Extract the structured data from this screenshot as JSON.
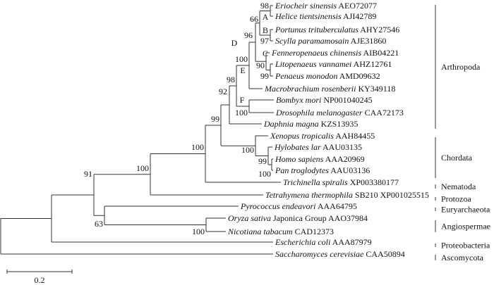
{
  "tips": [
    {
      "species": "Eriocheir sinensis",
      "accession": "AEO72077"
    },
    {
      "species": "Helice tientsinensis",
      "accession": "AJI42789"
    },
    {
      "species": "Portunus trituberculatus",
      "accession": "AHY27546"
    },
    {
      "species": "Scylla paramamosain",
      "accession": "AJE31860"
    },
    {
      "species": "Fenneropenaeus chinensis",
      "accession": "AIB04221"
    },
    {
      "species": "Litopenaeus vannamei",
      "accession": "AHZ12761"
    },
    {
      "species": "Penaeus monodon",
      "accession": "AMD09632"
    },
    {
      "species": "Macrobrachium rosenberii",
      "accession": "KY349118"
    },
    {
      "species": "Bombyx mori",
      "accession": "NP001040245"
    },
    {
      "species": "Drosophila melanogaster",
      "accession": "CAA72173"
    },
    {
      "species": "Daphnia magna",
      "accession": "KZS13935"
    },
    {
      "species": "Xenopus tropicalis",
      "accession": "AAH84455"
    },
    {
      "species": "Hylobates lar",
      "accession": "AAU03135"
    },
    {
      "species": "Homo sapiens",
      "accession": "AAA20969"
    },
    {
      "species": "Pan troglodytes",
      "accession": "AAU03136"
    },
    {
      "species": "Trichinella spiralis",
      "accession": "XP003380177"
    },
    {
      "species": "Tetrahymena thermophila",
      "accession": "SB210 XP001025515"
    },
    {
      "species": "Pyrococcus endeavori",
      "accession": "AAA64795"
    },
    {
      "species": "Oryza sativa",
      "accession": "Japonica Group AAO37984"
    },
    {
      "species": "Nicotiana tabacum",
      "accession": "CAD12373"
    },
    {
      "species": "Escherichia coli",
      "accession": "AAA87979"
    },
    {
      "species": "Saccharomyces cerevisiae",
      "accession": "CAA50894"
    }
  ],
  "node_labels": [
    "98",
    "A",
    "66",
    "B",
    "97",
    "96",
    "D",
    "C",
    "90",
    "99",
    "100",
    "E",
    "98",
    "F",
    "100",
    "92",
    "99",
    "100",
    "99",
    "100",
    "100",
    "100",
    "91",
    "63",
    "100"
  ],
  "groups": [
    "Arthropoda",
    "Chordata",
    "Nematoda",
    "Protozoa",
    "Euryarchaeota",
    "Angiospermae",
    "Proteobacteria",
    "Ascomycota"
  ],
  "scale_bar": {
    "label": "0.2",
    "value": 0.2
  }
}
